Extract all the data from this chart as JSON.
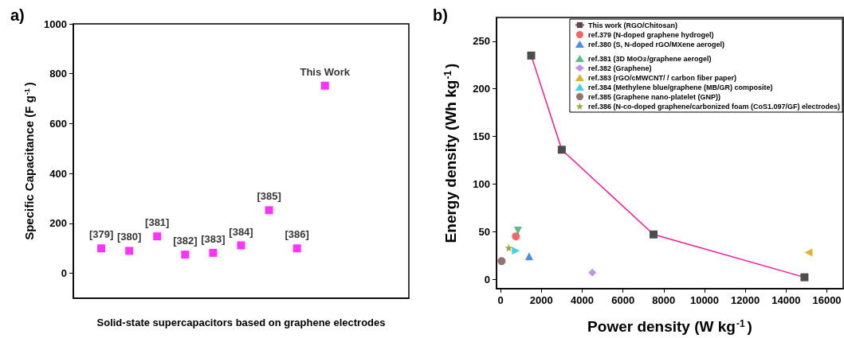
{
  "chart_data": [
    {
      "type": "scatter",
      "title": "a)",
      "xlabel": "Solid-state supercapacitors based on graphene electrodes",
      "ylabel": "Specific Capacitance (F g$^{-1}$)",
      "categories": [
        null,
        null,
        null,
        null,
        null,
        null,
        null,
        null,
        null,
        null,
        null,
        null,
        null
      ],
      "series": [
        {
          "name": "[379]",
          "color": "#ff00ff",
          "marker": "square",
          "values": [
            null,
            100,
            null,
            null,
            null,
            null,
            null,
            null,
            null,
            null,
            null,
            null,
            null
          ]
        },
        {
          "name": "[380]",
          "color": "#ff00ff",
          "marker": "square",
          "values": [
            null,
            null,
            90,
            null,
            null,
            null,
            null,
            null,
            null,
            null,
            null,
            null,
            null
          ]
        },
        {
          "name": "[381]",
          "color": "#ff00ff",
          "marker": "square",
          "values": [
            null,
            null,
            null,
            148,
            null,
            null,
            null,
            null,
            null,
            null,
            null,
            null,
            null
          ]
        },
        {
          "name": "[382]",
          "color": "#ff00ff",
          "marker": "square",
          "values": [
            null,
            null,
            null,
            null,
            75,
            null,
            null,
            null,
            null,
            null,
            null,
            null,
            null
          ]
        },
        {
          "name": "[383]",
          "color": "#ff00ff",
          "marker": "square",
          "values": [
            null,
            null,
            null,
            null,
            null,
            82,
            null,
            null,
            null,
            null,
            null,
            null,
            null
          ]
        },
        {
          "name": "[384]",
          "color": "#ff00ff",
          "marker": "square",
          "values": [
            null,
            null,
            null,
            null,
            null,
            null,
            112,
            null,
            null,
            null,
            null,
            null,
            null
          ]
        },
        {
          "name": "[385]",
          "color": "#ff00ff",
          "marker": "square",
          "values": [
            null,
            null,
            null,
            null,
            null,
            null,
            null,
            253,
            null,
            null,
            null,
            null,
            null
          ]
        },
        {
          "name": "[386]",
          "color": "#ff00ff",
          "marker": "square",
          "values": [
            null,
            null,
            null,
            null,
            null,
            null,
            null,
            null,
            100,
            null,
            null,
            null,
            null
          ]
        },
        {
          "name": "This Work",
          "color": "#ff00ff",
          "marker": "square",
          "values": [
            null,
            null,
            null,
            null,
            null,
            null,
            null,
            null,
            null,
            752,
            null,
            null,
            null
          ]
        }
      ],
      "ylim": [
        -100,
        1000
      ],
      "yticks": [
        0,
        200,
        400,
        600,
        800,
        1000
      ],
      "tick_labels": "y",
      "grid": false,
      "legend": false
    },
    {
      "type": "scatter",
      "title": "b)",
      "xlabel": "Power density (W kg$^{-1}$)",
      "ylabel": "Energy density (Wh kg$^{-1}$)",
      "series": [
        {
          "name": "This work (RGO/Chitosan)",
          "type": "line",
          "color": "#ff1493",
          "colors": [
            "#4d4d4d",
            "#4d4d4d",
            "#4d4d4d",
            "#4d4d4d"
          ],
          "marker": "square",
          "line_style": "solid",
          "x": [
            1500,
            3000,
            7500,
            14900
          ],
          "values": [
            235,
            136,
            47,
            2
          ]
        },
        {
          "name": "ref.379 (N-doped graphene hydrogel)",
          "color": "#f04040",
          "marker": "circle",
          "x": [
            750
          ],
          "values": [
            45
          ]
        },
        {
          "name": "ref.380 (S, N-doped rGO/MXene aerogel)",
          "color": "#1f6fe0",
          "marker": "triangle",
          "x": [
            1400
          ],
          "values": [
            24
          ]
        },
        {
          "name": "ref.381 (3D MoO$_{3}$/graphene aerogel)",
          "color": "#3aaa6a",
          "marker": "triangle-down",
          "x": [
            850
          ],
          "values": [
            51
          ]
        },
        {
          "name": "ref.382 (Graphene)",
          "color": "#b07ae0",
          "marker": "diamond",
          "x": [
            4500
          ],
          "values": [
            7
          ]
        },
        {
          "name": "ref.383 (rGO/cMWCNT/ / carbon fiber paper)",
          "color": "#d4a000",
          "marker": "triangle-left",
          "x": [
            15100
          ],
          "values": [
            28
          ]
        },
        {
          "name": "ref.384 (Methylene blue/graphene (MB/GR) composite)",
          "color": "#10c8d8",
          "marker": "triangle-right",
          "x": [
            750
          ],
          "values": [
            30
          ]
        },
        {
          "name": "ref.385 (Graphene nano-platelet (GNP))",
          "color": "#7a4f4f",
          "marker": "circle",
          "x": [
            50
          ],
          "values": [
            19
          ]
        },
        {
          "name": "ref.386 (N-co-doped graphene/carbonized foam (CoS1.097/GF) electrodes)",
          "color": "#8a8a00",
          "marker": "star",
          "x": [
            400
          ],
          "values": [
            33
          ]
        }
      ],
      "xlim": [
        -200,
        16800
      ],
      "xticks": [
        0,
        2000,
        4000,
        6000,
        8000,
        10000,
        12000,
        14000,
        16000
      ],
      "ylim": [
        -10,
        275
      ],
      "yticks": [
        0,
        50,
        100,
        150,
        200,
        250
      ],
      "grid": false,
      "legend": "top right"
    }
  ]
}
